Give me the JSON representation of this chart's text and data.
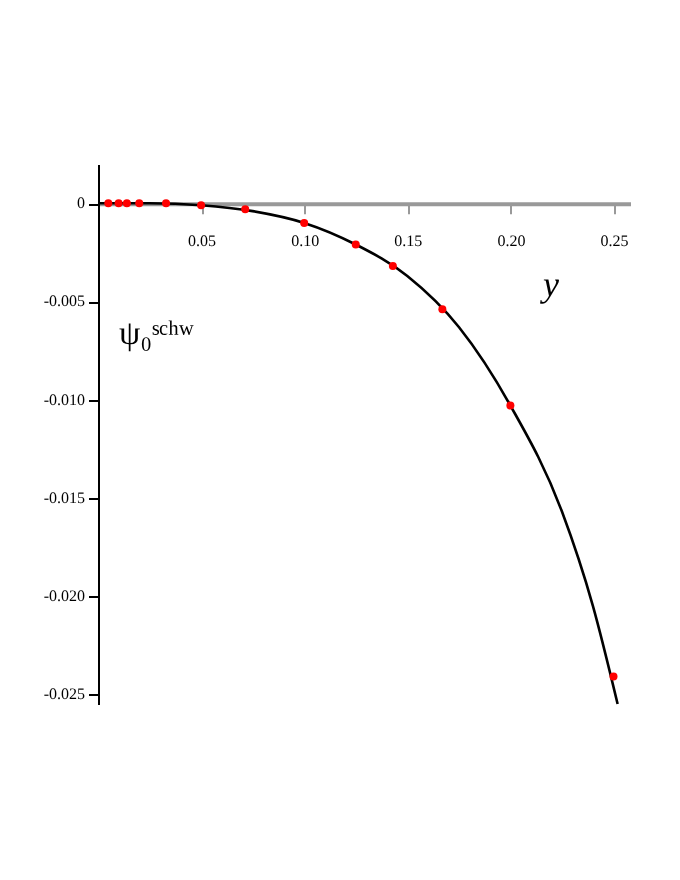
{
  "chart_data": {
    "type": "scatter",
    "xlabel": "y",
    "ylabel": "ψ₀ˢᶜʰʷ",
    "xlim": [
      0,
      0.258
    ],
    "ylim": [
      -0.0255,
      0.002
    ],
    "xticks": [
      0.05,
      {
        "value": 0.1,
        "label": "0.10"
      },
      0.15,
      {
        "value": 0.2,
        "label": "0.20"
      },
      0.25
    ],
    "yticks": [
      0,
      {
        "value": -0.005,
        "label": "-0.005"
      },
      {
        "value": -0.01,
        "label": "-0.010"
      },
      {
        "value": -0.015,
        "label": "-0.015"
      },
      {
        "value": -0.02,
        "label": "-0.020"
      },
      {
        "value": -0.025,
        "label": "-0.025"
      }
    ],
    "grid": false,
    "series": [
      {
        "type": "line",
        "color": "#000000",
        "line_style": "solid",
        "marker": "none",
        "x": [
          0,
          0.025,
          0.05,
          0.075,
          0.1,
          0.125,
          0.15,
          0.175,
          0.2,
          0.225,
          0.24,
          0.252
        ],
        "values": [
          0,
          0,
          -0.0001,
          -0.0004,
          -0.001,
          -0.0021,
          -0.0037,
          -0.0063,
          -0.0103,
          -0.0157,
          -0.0205,
          -0.0255
        ]
      },
      {
        "color": "#ff0000",
        "marker": "circle",
        "x": [
          0.005,
          0.01,
          0.014,
          0.02,
          0.033,
          0.05,
          0.0714,
          0.1,
          0.125,
          0.143,
          0.167,
          0.2,
          0.25
        ],
        "values": [
          0,
          0,
          0,
          0,
          0,
          -0.0001,
          -0.0003,
          -0.001,
          -0.0021,
          -0.0032,
          -0.0054,
          -0.0103,
          -0.0241
        ]
      }
    ]
  }
}
